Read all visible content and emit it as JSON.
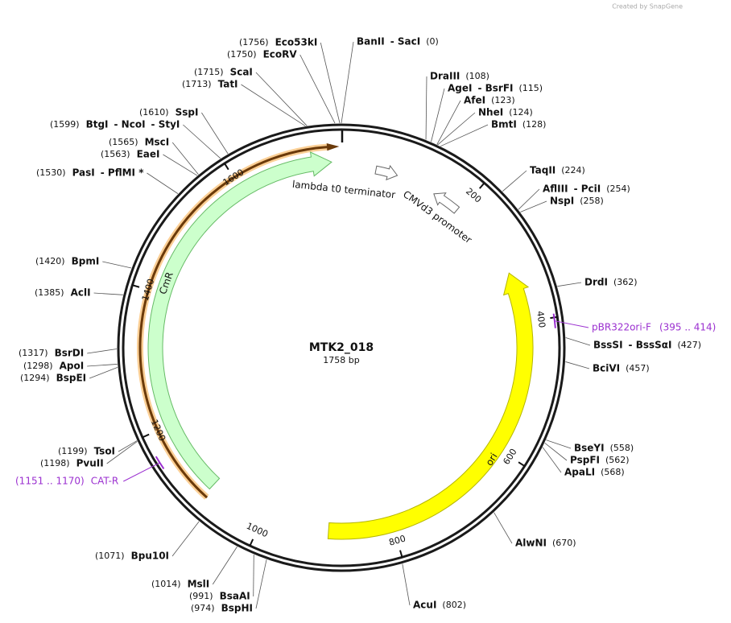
{
  "credit": "Created by SnapGene",
  "plasmid": {
    "name": "MTK2_018",
    "length": "1758 bp"
  },
  "features": [
    {
      "label": "lambda t0 terminator"
    },
    {
      "label": "CMVd3 promoter"
    },
    {
      "label": "CmR"
    },
    {
      "label": "ori"
    }
  ],
  "primers": [
    {
      "label": "pBR322ori-F",
      "position": "(395 .. 414)"
    },
    {
      "label": "CAT-R",
      "position": "(1151 .. 1170)"
    }
  ],
  "ticks": [
    "200",
    "400",
    "600",
    "800",
    "1000",
    "1200",
    "1400",
    "1600"
  ],
  "sites": [
    {
      "names": [
        "BanII",
        "- SacI"
      ],
      "position": "(0)"
    },
    {
      "names": [
        "DraIII"
      ],
      "position": "(108)"
    },
    {
      "names": [
        "AgeI",
        "- BsrFI"
      ],
      "position": "(115)"
    },
    {
      "names": [
        "AfeI"
      ],
      "position": "(123)"
    },
    {
      "names": [
        "NheI"
      ],
      "position": "(124)"
    },
    {
      "names": [
        "BmtI"
      ],
      "position": "(128)"
    },
    {
      "names": [
        "TaqII"
      ],
      "position": "(224)"
    },
    {
      "names": [
        "AflIII",
        "- PciI"
      ],
      "position": "(254)"
    },
    {
      "names": [
        "NspI"
      ],
      "position": "(258)"
    },
    {
      "names": [
        "DrdI"
      ],
      "position": "(362)"
    },
    {
      "names": [
        "BssSI",
        "- BssSαI"
      ],
      "position": "(427)"
    },
    {
      "names": [
        "BciVI"
      ],
      "position": "(457)"
    },
    {
      "names": [
        "BseYI"
      ],
      "position": "(558)"
    },
    {
      "names": [
        "PspFI"
      ],
      "position": "(562)"
    },
    {
      "names": [
        "ApaLI"
      ],
      "position": "(568)"
    },
    {
      "names": [
        "AlwNI"
      ],
      "position": "(670)"
    },
    {
      "names": [
        "AcuI"
      ],
      "position": "(802)"
    },
    {
      "names": [
        "BspHI"
      ],
      "position": "(974)"
    },
    {
      "names": [
        "BsaAI"
      ],
      "position": "(991)"
    },
    {
      "names": [
        "MslI"
      ],
      "position": "(1014)"
    },
    {
      "names": [
        "Bpu10I"
      ],
      "position": "(1071)"
    },
    {
      "names": [
        "PvuII"
      ],
      "position": "(1198)"
    },
    {
      "names": [
        "TsoI"
      ],
      "position": "(1199)"
    },
    {
      "names": [
        "BspEI"
      ],
      "position": "(1294)"
    },
    {
      "names": [
        "ApoI"
      ],
      "position": "(1298)"
    },
    {
      "names": [
        "BsrDI"
      ],
      "position": "(1317)"
    },
    {
      "names": [
        "AclI"
      ],
      "position": "(1385)"
    },
    {
      "names": [
        "BpmI"
      ],
      "position": "(1420)"
    },
    {
      "names": [
        "PasI",
        "- PflMI *"
      ],
      "position": "(1530)"
    },
    {
      "names": [
        "EaeI"
      ],
      "position": "(1563)"
    },
    {
      "names": [
        "MscI"
      ],
      "position": "(1565)"
    },
    {
      "names": [
        "BtgI",
        "- NcoI",
        "- StyI"
      ],
      "position": "(1599)"
    },
    {
      "names": [
        "SspI"
      ],
      "position": "(1610)"
    },
    {
      "names": [
        "TatI"
      ],
      "position": "(1713)"
    },
    {
      "names": [
        "ScaI"
      ],
      "position": "(1715)"
    },
    {
      "names": [
        "EcoRV"
      ],
      "position": "(1750)"
    },
    {
      "names": [
        "Eco53kI"
      ],
      "position": "(1756)"
    }
  ]
}
